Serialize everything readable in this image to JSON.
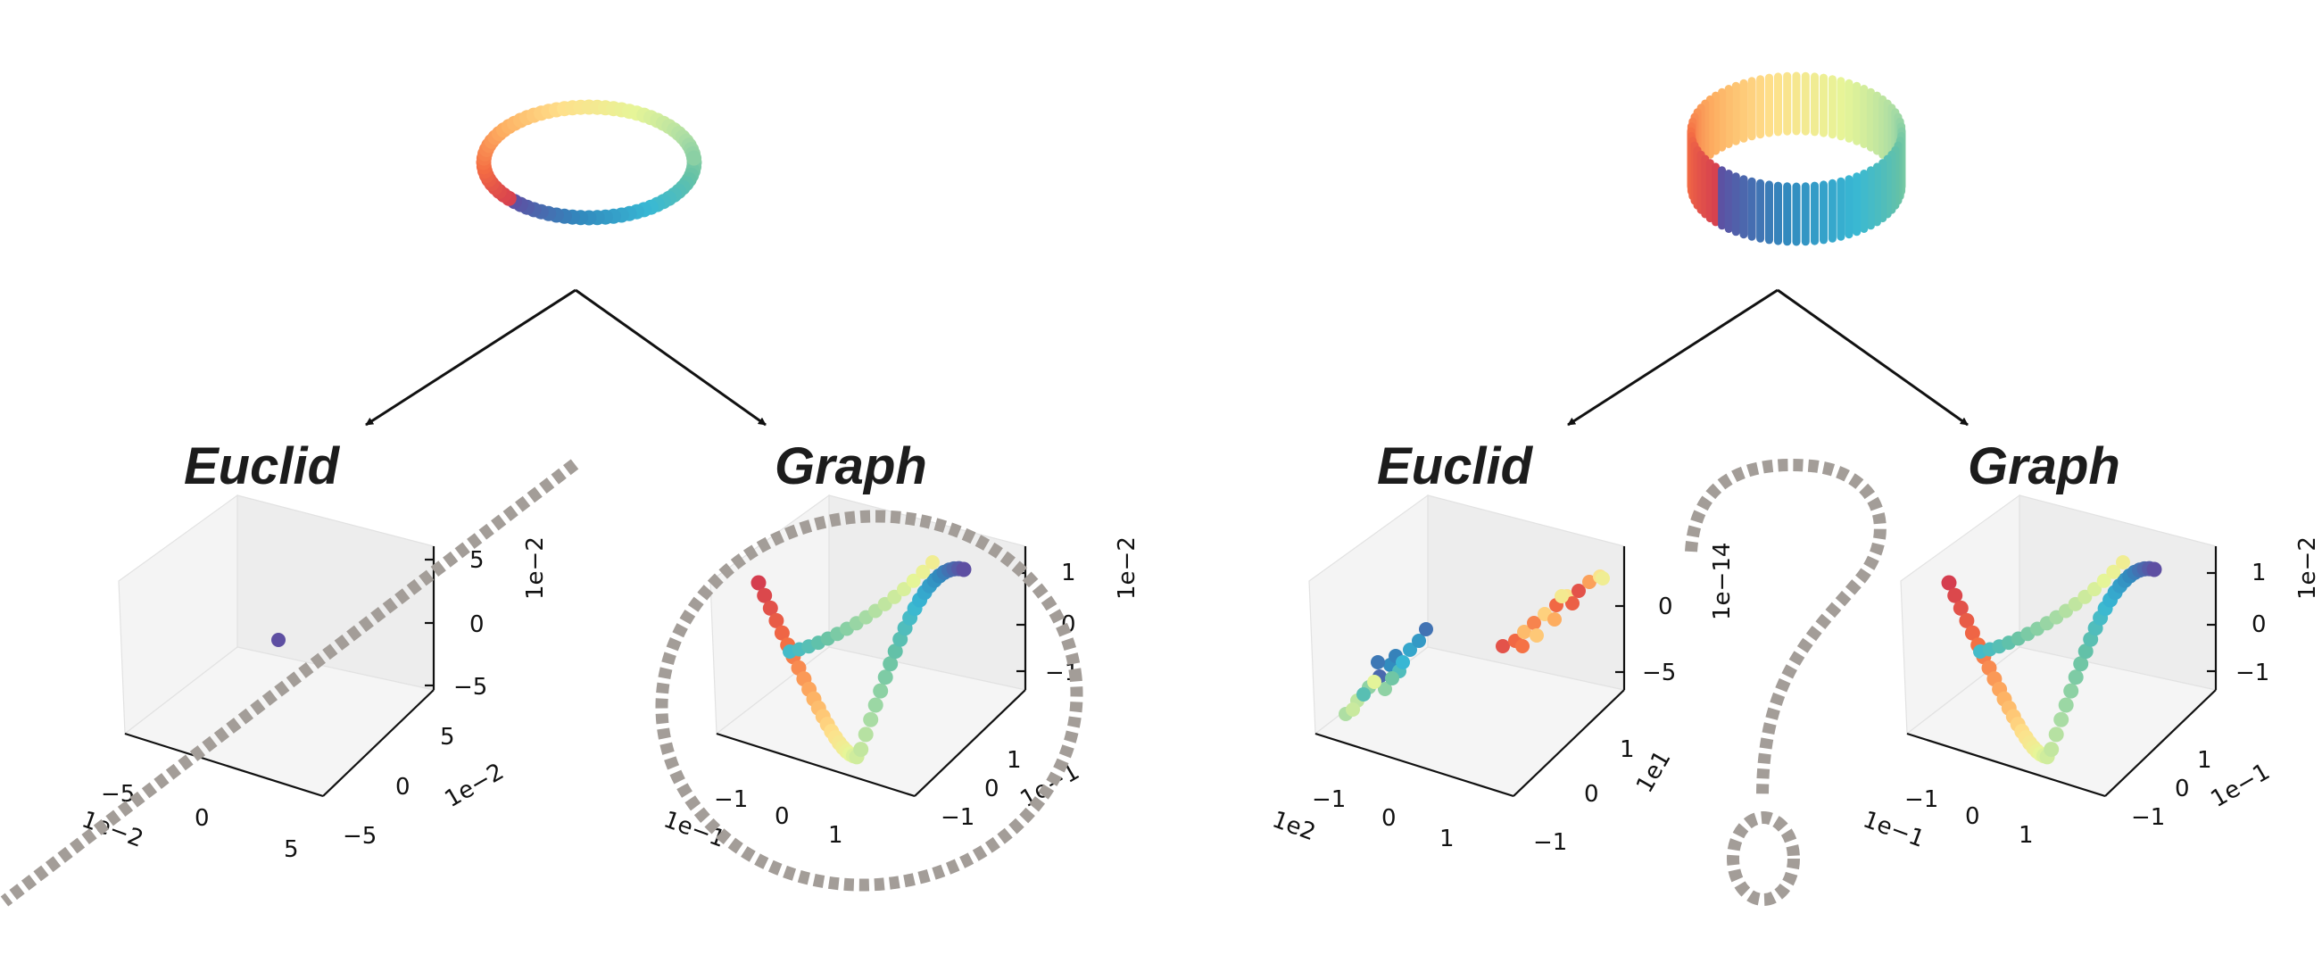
{
  "labels": {
    "left_euclid": "Euclid",
    "left_graph": "Graph",
    "right_euclid": "Euclid",
    "right_graph": "Graph"
  },
  "colors": {
    "arrow": "#111111",
    "overlay": "#a39d98",
    "colormap": [
      "#5e4fa2",
      "#3288bd",
      "#38b8d4",
      "#66c2a5",
      "#abdda4",
      "#e6f598",
      "#fee08b",
      "#fdae61",
      "#f46d43",
      "#d53e4f"
    ]
  },
  "panels": {
    "left_euclid": {
      "z_ticks": [
        "5",
        "0",
        "−5"
      ],
      "z_offset": "1e−2",
      "y_ticks": [
        "5",
        "0",
        "−5"
      ],
      "y_offset": "1e−2",
      "x_ticks": [
        "−5",
        "0",
        "5"
      ],
      "x_offset": "1e−2"
    },
    "left_graph": {
      "z_ticks": [
        "1",
        "0",
        "−1"
      ],
      "z_offset": "1e−2",
      "y_ticks": [
        "1",
        "0",
        "−1"
      ],
      "y_offset": "1e−1",
      "x_ticks": [
        "−1",
        "0",
        "1"
      ],
      "x_offset": "1e−1"
    },
    "right_euclid": {
      "z_ticks": [
        "0",
        "−5"
      ],
      "z_offset": "1e−14",
      "y_ticks": [
        "1",
        "0",
        "−1"
      ],
      "y_offset": "1e1",
      "x_ticks": [
        "−1",
        "0",
        "1"
      ],
      "x_offset": "1e2"
    },
    "right_graph": {
      "z_ticks": [
        "1",
        "0",
        "−1"
      ],
      "z_offset": "1e−2",
      "y_ticks": [
        "1",
        "0",
        "−1"
      ],
      "y_offset": "1e−1",
      "x_ticks": [
        "−1",
        "0",
        "1"
      ],
      "x_offset": "1e−1"
    }
  }
}
